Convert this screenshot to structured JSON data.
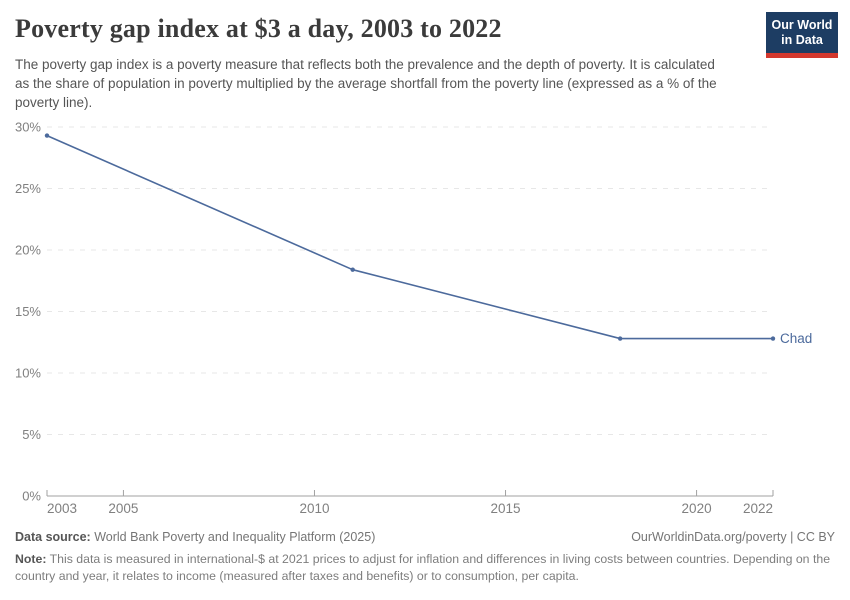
{
  "header": {
    "title": "Poverty gap index at $3 a day, 2003 to 2022",
    "subtitle": "The poverty gap index is a poverty measure that reflects both the prevalence and the depth of poverty. It is calculated as the share of population in poverty multiplied by the average shortfall from the poverty line (expressed as a % of the poverty line).",
    "logo": {
      "line1": "Our World",
      "line2": "in Data",
      "bg": "#1d3d63",
      "accent": "#d3382e"
    }
  },
  "chart_data": {
    "type": "line",
    "title": "Poverty gap index at $3 a day, 2003 to 2022",
    "series": [
      {
        "name": "Chad",
        "color": "#4C6A9C",
        "x": [
          2003,
          2011,
          2018,
          2022
        ],
        "values": [
          29.3,
          18.4,
          12.8,
          12.8
        ]
      }
    ],
    "entity_label": "Chad",
    "xlabel": "",
    "ylabel": "",
    "xlim": [
      2003,
      2022
    ],
    "ylim": [
      0,
      30
    ],
    "x_ticks": [
      2003,
      2005,
      2010,
      2015,
      2020,
      2022
    ],
    "y_ticks": [
      0,
      5,
      10,
      15,
      20,
      25,
      30
    ],
    "y_tick_suffix": "%",
    "grid": "horizontal-dashed",
    "legend_position": "end-of-line",
    "colors": {
      "line": "#4C6A9C",
      "grid": "#e7e7e7",
      "axis": "#a1a1a1",
      "tick_label": "#808080"
    }
  },
  "footer": {
    "data_source_label": "Data source:",
    "data_source": "World Bank Poverty and Inequality Platform (2025)",
    "attribution": "OurWorldinData.org/poverty | CC BY",
    "note_label": "Note:",
    "note": "This data is measured in international-$ at 2021 prices to adjust for inflation and differences in living costs between countries. Depending on the country and year, it relates to income (measured after taxes and benefits) or to consumption, per capita."
  }
}
